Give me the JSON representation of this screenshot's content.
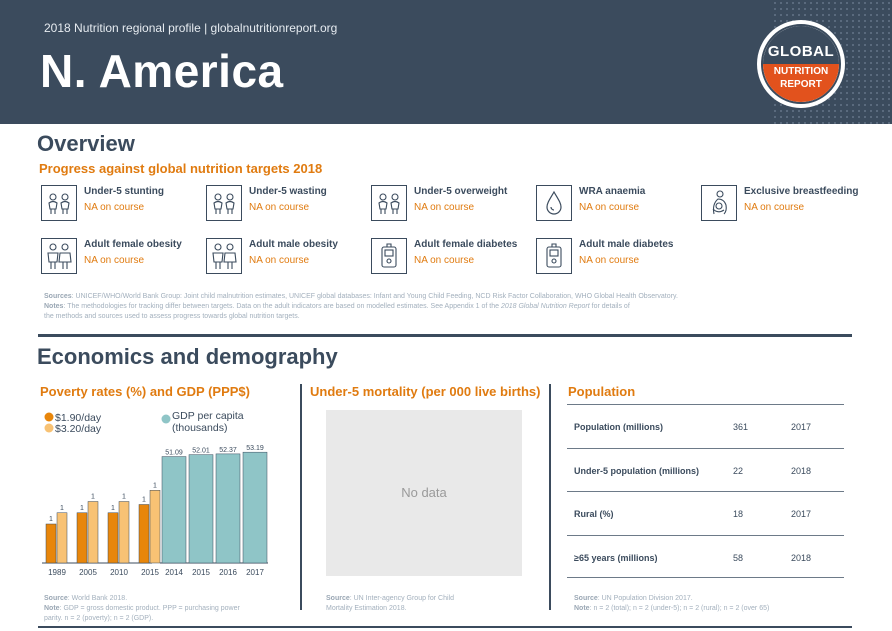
{
  "header": {
    "subtitle": "2018 Nutrition regional profile | globalnutritionreport.org",
    "title": "N. America",
    "logo": {
      "line1": "GLOBAL",
      "line2": "NUTRITION",
      "line3": "REPORT"
    }
  },
  "overview": {
    "heading": "Overview",
    "subheading": "Progress against global nutrition targets 2018",
    "targets": [
      {
        "name": "Under-5 stunting",
        "status": "NA on course",
        "icon": "children-icon"
      },
      {
        "name": "Under-5 wasting",
        "status": "NA on course",
        "icon": "children-icon"
      },
      {
        "name": "Under-5 overweight",
        "status": "NA on course",
        "icon": "children-icon"
      },
      {
        "name": "WRA anaemia",
        "status": "NA on course",
        "icon": "blood-drop-icon"
      },
      {
        "name": "Exclusive breastfeeding",
        "status": "NA on course",
        "icon": "breastfeeding-icon"
      },
      {
        "name": "Adult female obesity",
        "status": "NA on course",
        "icon": "adults-icon"
      },
      {
        "name": "Adult male obesity",
        "status": "NA on course",
        "icon": "adults-icon"
      },
      {
        "name": "Adult female diabetes",
        "status": "NA on course",
        "icon": "glucose-meter-icon"
      },
      {
        "name": "Adult male diabetes",
        "status": "NA on course",
        "icon": "glucose-meter-icon"
      }
    ],
    "sources": {
      "label": "Sources",
      "text": ": UNICEF/WHO/World Bank Group: Joint child malnutrition estimates, UNICEF global databases: Infant and Young Child Feeding, NCD Risk Factor Collaboration, WHO Global Health Observatory.",
      "notes_label": "Notes",
      "notes_text": ": The methodologies for tracking differ between targets. Data on the adult indicators are based on modelled estimates. See Appendix 1 of the ",
      "notes_italic": "2018 Global Nutrition Report",
      "notes_tail": " for details of",
      "notes_line3": "the methods and sources used to assess progress towards global nutrition targets."
    }
  },
  "economics": {
    "heading": "Economics and demography",
    "poverty": {
      "title": "Poverty rates (%) and GDP (PPP$)",
      "source_label": "Source",
      "source_text": ": World Bank 2018.",
      "note_label": "Note",
      "note_text": ": GDP = gross domestic product. PPP = purchasing power",
      "note_line2": "parity. n = 2 (poverty); n = 2 (GDP)."
    },
    "mortality": {
      "title": "Under-5 mortality (per 000 live births)",
      "no_data": "No data",
      "source_label": "Source",
      "source_text": ": UN Inter-agency Group for Child",
      "source_line2": "Mortality Estimation 2018."
    },
    "population": {
      "title": "Population",
      "rows": [
        {
          "label": "Population (millions)",
          "value": "361",
          "year": "2017"
        },
        {
          "label": "Under-5 population (millions)",
          "value": "22",
          "year": "2018"
        },
        {
          "label": "Rural (%)",
          "value": "18",
          "year": "2017"
        },
        {
          "label": "≥65 years (millions)",
          "value": "58",
          "year": "2018"
        }
      ],
      "source_label": "Source",
      "source_text": ": UN Population Division 2017.",
      "note_label": "Note",
      "note_text": ": n = 2 (total); n = 2 (under-5); n = 2 (rural); n = 2 (over 65)"
    }
  },
  "chart_data": {
    "type": "bar",
    "legend": [
      {
        "name": "$1.90/day",
        "color": "#e8860b"
      },
      {
        "name": "$3.20/day",
        "color": "#f8c274"
      },
      {
        "name": "GDP per capita",
        "name2": "(thousands)",
        "color": "#8fc5c7"
      }
    ],
    "poverty": {
      "categories": [
        "1989",
        "2005",
        "2010",
        "2015"
      ],
      "series": [
        {
          "name": "$1.90/day",
          "values": [
            1,
            1,
            1,
            1
          ],
          "labels": [
            "1",
            "1",
            "1",
            "1"
          ],
          "color": "#e8860b"
        },
        {
          "name": "$3.20/day",
          "values": [
            1,
            1,
            1,
            1
          ],
          "labels": [
            "1",
            "1",
            "1",
            "1"
          ],
          "color": "#f8c274"
        }
      ]
    },
    "gdp": {
      "name": "GDP per capita",
      "categories": [
        "2014",
        "2015",
        "2016",
        "2017"
      ],
      "values": [
        51.09,
        52.01,
        52.37,
        53.19
      ],
      "labels": [
        "51.09",
        "52.01",
        "52.37",
        "53.19"
      ],
      "color": "#8fc5c7"
    }
  }
}
